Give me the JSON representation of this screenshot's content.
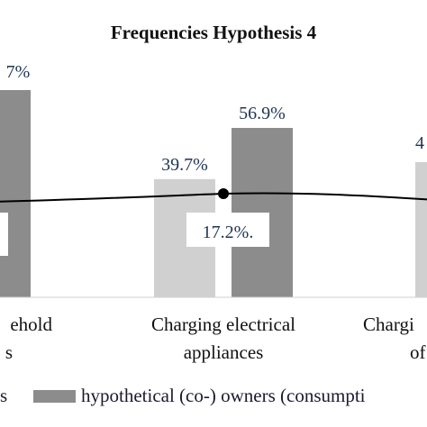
{
  "chart_data": {
    "type": "bar",
    "title": "Frequencies Hypothesis 4",
    "categories": [
      "...ehold\n...s",
      "Charging electrical\nappliances",
      "Chargi...\nof..."
    ],
    "series": [
      {
        "name": "...s",
        "color": "#d0d0d0",
        "values": [
          null,
          39.7,
          null
        ],
        "labels": [
          "",
          "39.7%",
          "4..."
        ]
      },
      {
        "name": "hypothetical (co-) owners (consumptio...",
        "color": "#8c8c8c",
        "values": [
          null,
          56.9,
          null
        ],
        "labels": [
          "...7%",
          "56.9%",
          ""
        ]
      }
    ],
    "line": {
      "values": [
        null,
        17.2,
        null
      ],
      "labels": [
        "",
        "17.2%.",
        ""
      ]
    },
    "ylim": [
      0,
      70
    ],
    "grid": false,
    "legend_position": "bottom"
  }
}
